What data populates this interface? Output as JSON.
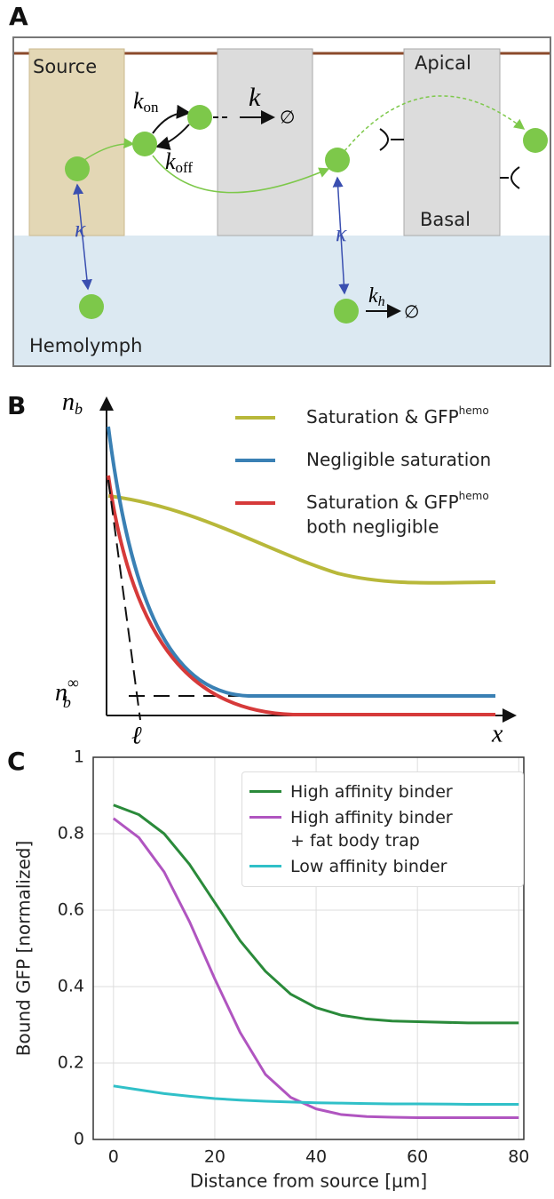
{
  "panel_a": {
    "label": "A",
    "source": "Source",
    "apical": "Apical",
    "basal": "Basal",
    "hemolymph": "Hemolymph",
    "kappa_left": "κ",
    "kappa_right": "κ",
    "k_on": {
      "base": "k",
      "sub": "on"
    },
    "k_off": {
      "base": "k",
      "sub": "off"
    },
    "k": "k",
    "k_h": {
      "base": "k",
      "sub": "h"
    },
    "null_k": "∅",
    "null_kh": "∅"
  },
  "panel_b": {
    "label": "B",
    "y_label": {
      "base": "n",
      "sub": "b"
    },
    "x_label": "x",
    "n_inf": {
      "base": "n",
      "sub": "b",
      "sup": "∞"
    },
    "ell": "ℓ",
    "legend": [
      {
        "text": "Saturation & GFP",
        "sup": "hemo",
        "color": "#b8b83a"
      },
      {
        "text": "Negligible saturation",
        "color": "#3a80b4"
      },
      {
        "text": "Saturation & GFP",
        "sup": "hemo",
        "line2": "both negligible",
        "color": "#d63a3a"
      }
    ]
  },
  "panel_c_label": "C",
  "chart_data": {
    "type": "line",
    "x_label": "Distance from source [μm]",
    "y_label": "Bound GFP [normalized]",
    "x": [
      0,
      5,
      10,
      15,
      20,
      25,
      30,
      35,
      40,
      45,
      50,
      55,
      60,
      70,
      80
    ],
    "series": [
      {
        "name": "High affinity binder",
        "color": "#2a8a3a",
        "values": [
          0.875,
          0.85,
          0.8,
          0.72,
          0.62,
          0.52,
          0.44,
          0.38,
          0.345,
          0.325,
          0.315,
          0.31,
          0.308,
          0.305,
          0.305
        ]
      },
      {
        "name": "High affinity binder\n+ fat body trap",
        "color": "#b055c0",
        "values": [
          0.84,
          0.79,
          0.7,
          0.57,
          0.42,
          0.28,
          0.17,
          0.11,
          0.08,
          0.065,
          0.06,
          0.058,
          0.057,
          0.057,
          0.057
        ]
      },
      {
        "name": "Low affinity binder",
        "color": "#30c0c8",
        "values": [
          0.14,
          0.13,
          0.12,
          0.113,
          0.107,
          0.103,
          0.1,
          0.098,
          0.096,
          0.095,
          0.094,
          0.093,
          0.093,
          0.092,
          0.092
        ]
      }
    ],
    "xlim": [
      -4,
      81
    ],
    "ylim": [
      0,
      1
    ],
    "xticks": [
      0,
      20,
      40,
      60,
      80
    ],
    "yticks": [
      0,
      0.2,
      0.4,
      0.6,
      0.8,
      1
    ],
    "grid": true
  }
}
